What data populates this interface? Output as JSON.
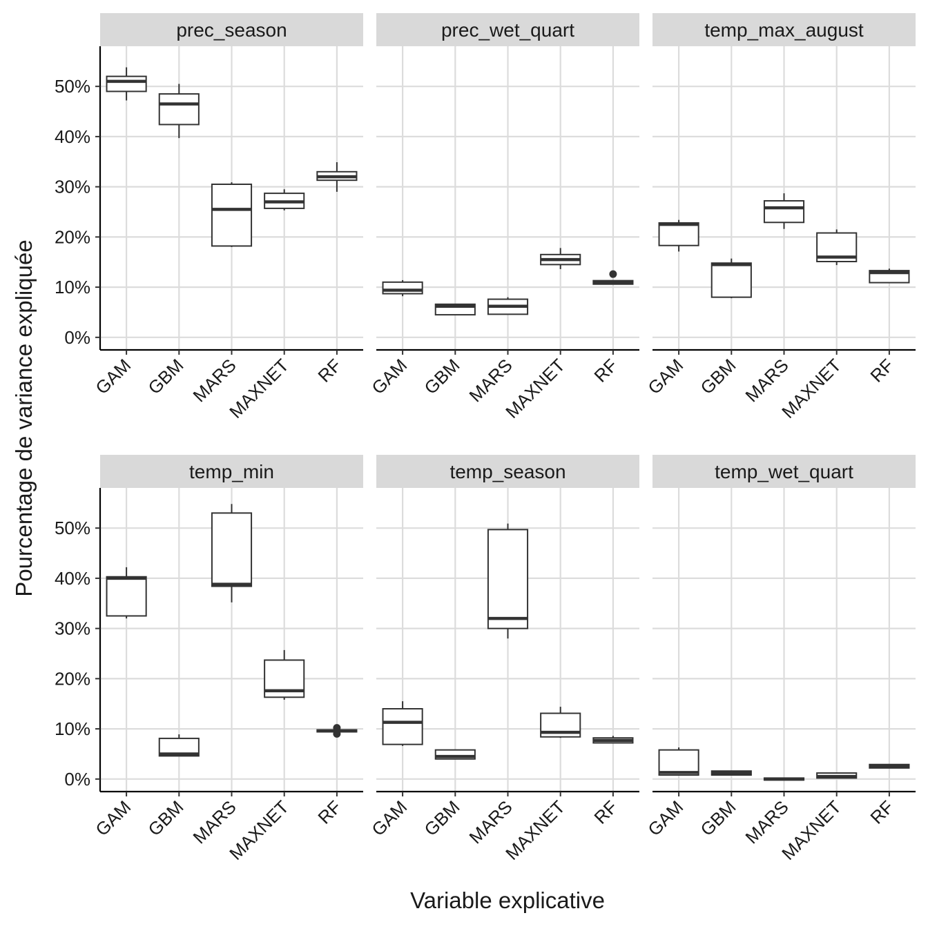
{
  "chart_data": {
    "type": "boxplot",
    "xlabel": "Variable explicative",
    "ylabel": "Pourcentage de variance expliquée",
    "ylim": [
      -0.025,
      0.58
    ],
    "y_ticks": [
      0,
      0.1,
      0.2,
      0.3,
      0.4,
      0.5
    ],
    "y_tick_labels": [
      "0%",
      "10%",
      "20%",
      "30%",
      "40%",
      "50%"
    ],
    "categories": [
      "GAM",
      "GBM",
      "MARS",
      "MAXNET",
      "RF"
    ],
    "panels": [
      {
        "title": "prec_season",
        "boxes": [
          {
            "category": "GAM",
            "whisker_low": 0.472,
            "q1": 0.49,
            "median": 0.51,
            "q3": 0.52,
            "whisker_high": 0.538,
            "outliers": []
          },
          {
            "category": "GBM",
            "whisker_low": 0.397,
            "q1": 0.424,
            "median": 0.465,
            "q3": 0.485,
            "whisker_high": 0.505,
            "outliers": []
          },
          {
            "category": "MARS",
            "whisker_low": 0.18,
            "q1": 0.182,
            "median": 0.255,
            "q3": 0.305,
            "whisker_high": 0.309,
            "outliers": []
          },
          {
            "category": "MAXNET",
            "whisker_low": 0.253,
            "q1": 0.257,
            "median": 0.27,
            "q3": 0.287,
            "whisker_high": 0.295,
            "outliers": []
          },
          {
            "category": "RF",
            "whisker_low": 0.29,
            "q1": 0.313,
            "median": 0.32,
            "q3": 0.33,
            "whisker_high": 0.349,
            "outliers": []
          }
        ]
      },
      {
        "title": "prec_wet_quart",
        "boxes": [
          {
            "category": "GAM",
            "whisker_low": 0.082,
            "q1": 0.087,
            "median": 0.094,
            "q3": 0.11,
            "whisker_high": 0.114,
            "outliers": []
          },
          {
            "category": "GBM",
            "whisker_low": 0.045,
            "q1": 0.045,
            "median": 0.062,
            "q3": 0.066,
            "whisker_high": 0.066,
            "outliers": []
          },
          {
            "category": "MARS",
            "whisker_low": 0.046,
            "q1": 0.046,
            "median": 0.062,
            "q3": 0.076,
            "whisker_high": 0.08,
            "outliers": []
          },
          {
            "category": "MAXNET",
            "whisker_low": 0.136,
            "q1": 0.145,
            "median": 0.155,
            "q3": 0.165,
            "whisker_high": 0.178,
            "outliers": []
          },
          {
            "category": "RF",
            "whisker_low": 0.105,
            "q1": 0.106,
            "median": 0.109,
            "q3": 0.113,
            "whisker_high": 0.114,
            "outliers": [
              0.126
            ]
          }
        ]
      },
      {
        "title": "temp_max_august",
        "boxes": [
          {
            "category": "GAM",
            "whisker_low": 0.171,
            "q1": 0.183,
            "median": 0.225,
            "q3": 0.228,
            "whisker_high": 0.234,
            "outliers": []
          },
          {
            "category": "GBM",
            "whisker_low": 0.078,
            "q1": 0.08,
            "median": 0.145,
            "q3": 0.148,
            "whisker_high": 0.157,
            "outliers": []
          },
          {
            "category": "MARS",
            "whisker_low": 0.216,
            "q1": 0.229,
            "median": 0.258,
            "q3": 0.272,
            "whisker_high": 0.287,
            "outliers": []
          },
          {
            "category": "MAXNET",
            "whisker_low": 0.144,
            "q1": 0.151,
            "median": 0.16,
            "q3": 0.208,
            "whisker_high": 0.215,
            "outliers": []
          },
          {
            "category": "RF",
            "whisker_low": 0.109,
            "q1": 0.109,
            "median": 0.129,
            "q3": 0.133,
            "whisker_high": 0.137,
            "outliers": []
          }
        ]
      },
      {
        "title": "temp_min",
        "boxes": [
          {
            "category": "GAM",
            "whisker_low": 0.32,
            "q1": 0.325,
            "median": 0.4,
            "q3": 0.403,
            "whisker_high": 0.422,
            "outliers": []
          },
          {
            "category": "GBM",
            "whisker_low": 0.046,
            "q1": 0.046,
            "median": 0.05,
            "q3": 0.081,
            "whisker_high": 0.089,
            "outliers": []
          },
          {
            "category": "MARS",
            "whisker_low": 0.352,
            "q1": 0.384,
            "median": 0.388,
            "q3": 0.53,
            "whisker_high": 0.548,
            "outliers": []
          },
          {
            "category": "MAXNET",
            "whisker_low": 0.158,
            "q1": 0.163,
            "median": 0.176,
            "q3": 0.237,
            "whisker_high": 0.257,
            "outliers": []
          },
          {
            "category": "RF",
            "whisker_low": 0.094,
            "q1": 0.094,
            "median": 0.096,
            "q3": 0.098,
            "whisker_high": 0.098,
            "outliers": [
              0.09,
              0.102
            ]
          }
        ]
      },
      {
        "title": "temp_season",
        "boxes": [
          {
            "category": "GAM",
            "whisker_low": 0.066,
            "q1": 0.069,
            "median": 0.113,
            "q3": 0.14,
            "whisker_high": 0.155,
            "outliers": []
          },
          {
            "category": "GBM",
            "whisker_low": 0.04,
            "q1": 0.04,
            "median": 0.045,
            "q3": 0.058,
            "whisker_high": 0.058,
            "outliers": []
          },
          {
            "category": "MARS",
            "whisker_low": 0.28,
            "q1": 0.3,
            "median": 0.32,
            "q3": 0.497,
            "whisker_high": 0.509,
            "outliers": []
          },
          {
            "category": "MAXNET",
            "whisker_low": 0.082,
            "q1": 0.084,
            "median": 0.093,
            "q3": 0.131,
            "whisker_high": 0.144,
            "outliers": []
          },
          {
            "category": "RF",
            "whisker_low": 0.072,
            "q1": 0.072,
            "median": 0.077,
            "q3": 0.082,
            "whisker_high": 0.086,
            "outliers": []
          }
        ]
      },
      {
        "title": "temp_wet_quart",
        "boxes": [
          {
            "category": "GAM",
            "whisker_low": 0.008,
            "q1": 0.008,
            "median": 0.013,
            "q3": 0.058,
            "whisker_high": 0.063,
            "outliers": []
          },
          {
            "category": "GBM",
            "whisker_low": 0.008,
            "q1": 0.008,
            "median": 0.012,
            "q3": 0.016,
            "whisker_high": 0.016,
            "outliers": []
          },
          {
            "category": "MARS",
            "whisker_low": -0.002,
            "q1": -0.002,
            "median": 0.0,
            "q3": 0.002,
            "whisker_high": 0.002,
            "outliers": []
          },
          {
            "category": "MAXNET",
            "whisker_low": 0.002,
            "q1": 0.002,
            "median": 0.005,
            "q3": 0.012,
            "whisker_high": 0.012,
            "outliers": []
          },
          {
            "category": "RF",
            "whisker_low": 0.022,
            "q1": 0.022,
            "median": 0.026,
            "q3": 0.029,
            "whisker_high": 0.029,
            "outliers": []
          }
        ]
      }
    ]
  }
}
